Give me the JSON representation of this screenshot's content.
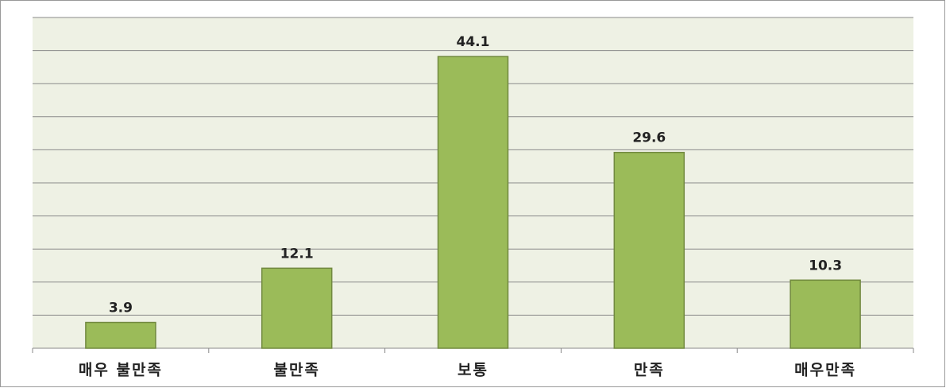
{
  "chart_data": {
    "type": "bar",
    "categories": [
      "매우 불만족",
      "불만족",
      "보통",
      "만족",
      "매우만족"
    ],
    "values": [
      3.9,
      12.1,
      44.1,
      29.6,
      10.3
    ],
    "color": "#9bbb59",
    "ylim": [
      0,
      50
    ],
    "yticks": [
      0,
      5,
      10,
      15,
      20,
      25,
      30,
      35,
      40,
      45,
      50
    ],
    "ytick_labels": false,
    "grid": true
  }
}
